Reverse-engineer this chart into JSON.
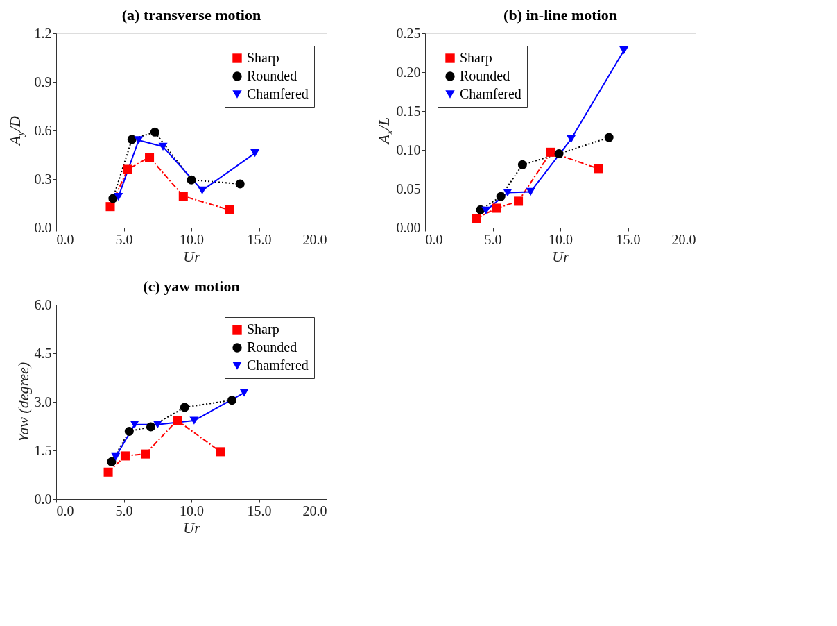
{
  "chart_data": [
    {
      "type": "line",
      "title": "(a) transverse motion",
      "xlabel": "Ur",
      "ylabel": "A$_{y}$/D",
      "legend": "top right",
      "grid": false,
      "xlim": [
        0,
        20
      ],
      "xticks": [
        {
          "value": 0,
          "label": "0.0"
        },
        {
          "value": 5,
          "label": "5.0"
        },
        {
          "value": 10,
          "label": "10.0"
        },
        {
          "value": 15,
          "label": "15.0"
        },
        {
          "value": 20,
          "label": "20.0"
        }
      ],
      "ylim": [
        0,
        1.2
      ],
      "yticks": [
        {
          "value": 0,
          "label": "0.0"
        },
        0.3,
        0.6,
        0.9,
        1.2
      ],
      "series": [
        {
          "name": "Sharp",
          "color": "#ff0000",
          "marker": "square",
          "line_style": "dashdot",
          "x": [
            4.0,
            5.3,
            6.9,
            9.4,
            12.8
          ],
          "values": [
            0.13,
            0.36,
            0.435,
            0.195,
            0.11
          ]
        },
        {
          "name": "Rounded",
          "color": "#000000",
          "marker": "circle",
          "line_style": "dotted",
          "x": [
            4.2,
            5.6,
            7.3,
            10.0,
            13.6
          ],
          "values": [
            0.18,
            0.545,
            0.59,
            0.295,
            0.27
          ]
        },
        {
          "name": "Chamfered",
          "color": "#0000ff",
          "marker": "triangle-down",
          "line_style": "solid",
          "x": [
            4.6,
            6.1,
            7.9,
            10.8,
            14.7
          ],
          "values": [
            0.19,
            0.54,
            0.5,
            0.23,
            0.46
          ]
        }
      ]
    },
    {
      "type": "line",
      "title": "(b) in-line motion",
      "xlabel": "Ur",
      "ylabel": "A$_{x}$/L",
      "legend": "top left",
      "grid": false,
      "xlim": [
        0,
        20
      ],
      "xticks": [
        {
          "value": 0,
          "label": "0.0"
        },
        {
          "value": 5,
          "label": "5.0"
        },
        {
          "value": 10,
          "label": "10.0"
        },
        {
          "value": 15,
          "label": "15.0"
        },
        {
          "value": 20,
          "label": "20.0"
        }
      ],
      "ylim": [
        0,
        0.25
      ],
      "yticks": [
        {
          "value": 0,
          "label": "0.00"
        },
        0.05,
        {
          "value": 0.1,
          "label": "0.10"
        },
        0.15,
        {
          "value": 0.2,
          "label": "0.20"
        },
        0.25
      ],
      "series": [
        {
          "name": "Sharp",
          "color": "#ff0000",
          "marker": "square",
          "line_style": "dashdot",
          "x": [
            3.8,
            5.3,
            6.9,
            9.3,
            12.8
          ],
          "values": [
            0.012,
            0.025,
            0.034,
            0.097,
            0.076
          ]
        },
        {
          "name": "Rounded",
          "color": "#000000",
          "marker": "circle",
          "line_style": "dotted",
          "x": [
            4.1,
            5.6,
            7.2,
            9.9,
            13.6
          ],
          "values": [
            0.023,
            0.04,
            0.081,
            0.095,
            0.116
          ]
        },
        {
          "name": "Chamfered",
          "color": "#0000ff",
          "marker": "triangle-down",
          "line_style": "solid",
          "x": [
            4.5,
            6.1,
            7.8,
            10.8,
            14.7
          ],
          "values": [
            0.022,
            0.045,
            0.046,
            0.114,
            0.228
          ]
        }
      ]
    },
    {
      "type": "line",
      "title": "(c) yaw motion",
      "xlabel": "Ur",
      "ylabel": "Yaw (degree)",
      "legend": "top right",
      "grid": false,
      "xlim": [
        0,
        20
      ],
      "xticks": [
        {
          "value": 0,
          "label": "0.0"
        },
        {
          "value": 5,
          "label": "5.0"
        },
        {
          "value": 10,
          "label": "10.0"
        },
        {
          "value": 15,
          "label": "15.0"
        },
        {
          "value": 20,
          "label": "20.0"
        }
      ],
      "ylim": [
        0,
        6
      ],
      "yticks": [
        {
          "value": 0,
          "label": "0.0"
        },
        1.5,
        {
          "value": 3,
          "label": "3.0"
        },
        4.5,
        {
          "value": 6,
          "label": "6.0"
        }
      ],
      "series": [
        {
          "name": "Sharp",
          "color": "#ff0000",
          "marker": "square",
          "line_style": "dashdot",
          "x": [
            3.85,
            5.1,
            6.6,
            8.95,
            12.15
          ],
          "values": [
            0.83,
            1.33,
            1.39,
            2.43,
            1.46
          ]
        },
        {
          "name": "Rounded",
          "color": "#000000",
          "marker": "circle",
          "line_style": "dotted",
          "x": [
            4.1,
            5.4,
            7.0,
            9.5,
            13.0
          ],
          "values": [
            1.15,
            2.09,
            2.23,
            2.83,
            3.05
          ]
        },
        {
          "name": "Chamfered",
          "color": "#0000ff",
          "marker": "triangle-down",
          "line_style": "solid",
          "x": [
            4.4,
            5.8,
            7.5,
            10.2,
            13.9
          ],
          "values": [
            1.3,
            2.3,
            2.3,
            2.42,
            3.28
          ]
        }
      ]
    }
  ]
}
